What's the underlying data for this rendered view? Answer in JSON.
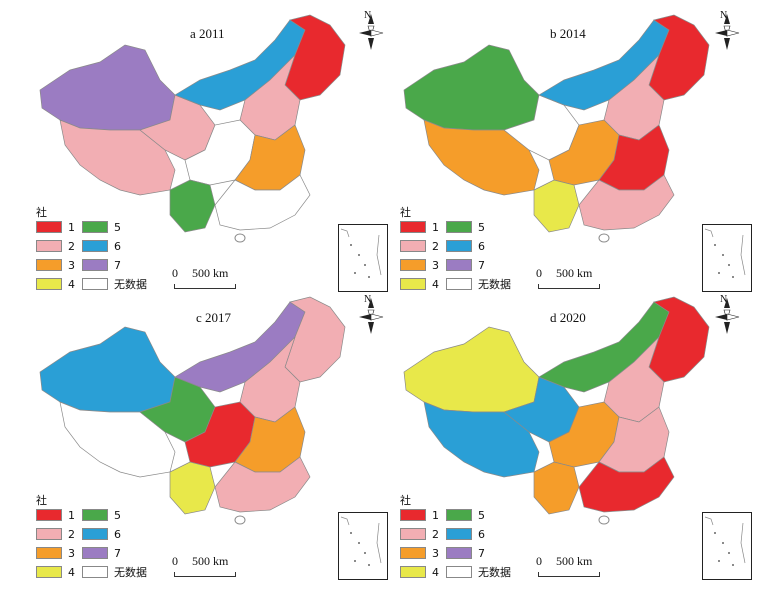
{
  "panels": [
    {
      "title": "a 2011",
      "regions": {
        "ne": "#e8292e",
        "nmg": "#2a9fd6",
        "xj": "#9b7cc2",
        "xz": "#f2aeb3",
        "qh": "#f2aeb3",
        "sc": "#ffffff",
        "yn": "#4aa84a",
        "central": "#f59d2a",
        "north": "#f2aeb3",
        "south": "#ffffff"
      }
    },
    {
      "title": "b 2014",
      "regions": {
        "ne": "#e8292e",
        "nmg": "#2a9fd6",
        "xj": "#4aa84a",
        "xz": "#f59d2a",
        "qh": "#ffffff",
        "sc": "#f59d2a",
        "yn": "#e8e84a",
        "central": "#e8292e",
        "north": "#f2aeb3",
        "south": "#f2aeb3"
      }
    },
    {
      "title": "c 2017",
      "regions": {
        "ne": "#f2aeb3",
        "nmg": "#9b7cc2",
        "xj": "#2a9fd6",
        "xz": "#ffffff",
        "qh": "#4aa84a",
        "sc": "#e8292e",
        "yn": "#e8e84a",
        "central": "#f59d2a",
        "north": "#f2aeb3",
        "south": "#f2aeb3"
      }
    },
    {
      "title": "d 2020",
      "regions": {
        "ne": "#e8292e",
        "nmg": "#4aa84a",
        "xj": "#e8e84a",
        "xz": "#2a9fd6",
        "qh": "#2a9fd6",
        "sc": "#f59d2a",
        "yn": "#f59d2a",
        "central": "#f2aeb3",
        "north": "#f2aeb3",
        "south": "#e8292e"
      }
    }
  ],
  "legend": {
    "title": "社区",
    "items": [
      {
        "label": "1",
        "color": "#e8292e"
      },
      {
        "label": "2",
        "color": "#f2aeb3"
      },
      {
        "label": "3",
        "color": "#f59d2a"
      },
      {
        "label": "4",
        "color": "#e8e84a"
      },
      {
        "label": "5",
        "color": "#4aa84a"
      },
      {
        "label": "6",
        "color": "#2a9fd6"
      },
      {
        "label": "7",
        "color": "#9b7cc2"
      },
      {
        "label": "无数据",
        "color": "#ffffff"
      }
    ]
  },
  "scale": {
    "zero": "0",
    "text": "500 km"
  },
  "north": "N"
}
